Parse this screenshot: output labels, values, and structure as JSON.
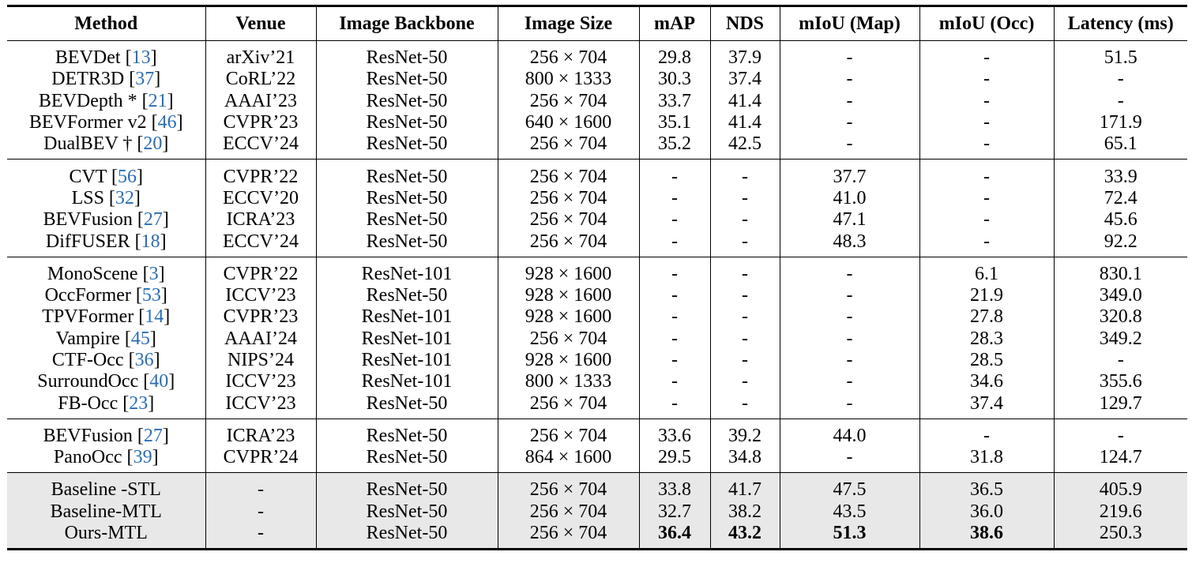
{
  "headers": [
    "Method",
    "Venue",
    "Image Backbone",
    "Image Size",
    "mAP",
    "NDS",
    "mIoU (Map)",
    "mIoU (Occ)",
    "Latency (ms)"
  ],
  "groups": [
    {
      "name": "detection",
      "rows": [
        {
          "method": "BEVDet [",
          "ref": "13",
          "tail": "]",
          "venue": "arXiv’21",
          "backbone": "ResNet-50",
          "size": "256 × 704",
          "map": "29.8",
          "nds": "37.9",
          "miou_map": "-",
          "miou_occ": "-",
          "latency": "51.5"
        },
        {
          "method": "DETR3D [",
          "ref": "37",
          "tail": "]",
          "venue": "CoRL’22",
          "backbone": "ResNet-50",
          "size": "800 × 1333",
          "map": "30.3",
          "nds": "37.4",
          "miou_map": "-",
          "miou_occ": "-",
          "latency": "-"
        },
        {
          "method": "BEVDepth * [",
          "ref": "21",
          "tail": "]",
          "venue": "AAAI’23",
          "backbone": "ResNet-50",
          "size": "256 × 704",
          "map": "33.7",
          "nds": "41.4",
          "miou_map": "-",
          "miou_occ": "-",
          "latency": "-"
        },
        {
          "method": "BEVFormer v2 [",
          "ref": "46",
          "tail": "]",
          "venue": "CVPR’23",
          "backbone": "ResNet-50",
          "size": "640 × 1600",
          "map": "35.1",
          "nds": "41.4",
          "miou_map": "-",
          "miou_occ": "-",
          "latency": "171.9"
        },
        {
          "method": "DualBEV † [",
          "ref": "20",
          "tail": "]",
          "venue": "ECCV’24",
          "backbone": "ResNet-50",
          "size": "256 × 704",
          "map": "35.2",
          "nds": "42.5",
          "miou_map": "-",
          "miou_occ": "-",
          "latency": "65.1"
        }
      ]
    },
    {
      "name": "map-segmentation",
      "rows": [
        {
          "method": "CVT [",
          "ref": "56",
          "tail": "]",
          "venue": "CVPR’22",
          "backbone": "ResNet-50",
          "size": "256 × 704",
          "map": "-",
          "nds": "-",
          "miou_map": "37.7",
          "miou_occ": "-",
          "latency": "33.9"
        },
        {
          "method": "LSS [",
          "ref": "32",
          "tail": "]",
          "venue": "ECCV’20",
          "backbone": "ResNet-50",
          "size": "256 × 704",
          "map": "-",
          "nds": "-",
          "miou_map": "41.0",
          "miou_occ": "-",
          "latency": "72.4"
        },
        {
          "method": "BEVFusion [",
          "ref": "27",
          "tail": "]",
          "venue": "ICRA’23",
          "backbone": "ResNet-50",
          "size": "256 × 704",
          "map": "-",
          "nds": "-",
          "miou_map": "47.1",
          "miou_occ": "-",
          "latency": "45.6"
        },
        {
          "method": "DifFUSER [",
          "ref": "18",
          "tail": "]",
          "venue": "ECCV’24",
          "backbone": "ResNet-50",
          "size": "256 × 704",
          "map": "-",
          "nds": "-",
          "miou_map": "48.3",
          "miou_occ": "-",
          "latency": "92.2"
        }
      ]
    },
    {
      "name": "occupancy",
      "rows": [
        {
          "method": "MonoScene [",
          "ref": "3",
          "tail": "]",
          "venue": "CVPR’22",
          "backbone": "ResNet-101",
          "size": "928 × 1600",
          "map": "-",
          "nds": "-",
          "miou_map": "-",
          "miou_occ": "6.1",
          "latency": "830.1"
        },
        {
          "method": "OccFormer [",
          "ref": "53",
          "tail": "]",
          "venue": "ICCV’23",
          "backbone": "ResNet-50",
          "size": "928 × 1600",
          "map": "-",
          "nds": "-",
          "miou_map": "-",
          "miou_occ": "21.9",
          "latency": "349.0"
        },
        {
          "method": "TPVFormer [",
          "ref": "14",
          "tail": "]",
          "venue": "CVPR’23",
          "backbone": "ResNet-101",
          "size": "928 × 1600",
          "map": "-",
          "nds": "-",
          "miou_map": "-",
          "miou_occ": "27.8",
          "latency": "320.8"
        },
        {
          "method": "Vampire [",
          "ref": "45",
          "tail": "]",
          "venue": "AAAI’24",
          "backbone": "ResNet-101",
          "size": "256 × 704",
          "map": "-",
          "nds": "-",
          "miou_map": "-",
          "miou_occ": "28.3",
          "latency": "349.2"
        },
        {
          "method": "CTF-Occ [",
          "ref": "36",
          "tail": "]",
          "venue": "NIPS’24",
          "backbone": "ResNet-101",
          "size": "928 × 1600",
          "map": "-",
          "nds": "-",
          "miou_map": "-",
          "miou_occ": "28.5",
          "latency": "-"
        },
        {
          "method": "SurroundOcc [",
          "ref": "40",
          "tail": "]",
          "venue": "ICCV’23",
          "backbone": "ResNet-101",
          "size": "800 × 1333",
          "map": "-",
          "nds": "-",
          "miou_map": "-",
          "miou_occ": "34.6",
          "latency": "355.6"
        },
        {
          "method": "FB-Occ [",
          "ref": "23",
          "tail": "]",
          "venue": "ICCV’23",
          "backbone": "ResNet-50",
          "size": "256 × 704",
          "map": "-",
          "nds": "-",
          "miou_map": "-",
          "miou_occ": "37.4",
          "latency": "129.7"
        }
      ]
    },
    {
      "name": "multi-task",
      "rows": [
        {
          "method": "BEVFusion [",
          "ref": "27",
          "tail": "]",
          "venue": "ICRA’23",
          "backbone": "ResNet-50",
          "size": "256 × 704",
          "map": "33.6",
          "nds": "39.2",
          "miou_map": "44.0",
          "miou_occ": "-",
          "latency": "-"
        },
        {
          "method": "PanoOcc [",
          "ref": "39",
          "tail": "]",
          "venue": "CVPR’24",
          "backbone": "ResNet-50",
          "size": "864 × 1600",
          "map": "29.5",
          "nds": "34.8",
          "miou_map": "-",
          "miou_occ": "31.8",
          "latency": "124.7"
        }
      ]
    },
    {
      "name": "ours",
      "rows": [
        {
          "method": "Baseline -STL",
          "ref": "",
          "tail": "",
          "venue": "-",
          "backbone": "ResNet-50",
          "size": "256 × 704",
          "map": "33.8",
          "nds": "41.7",
          "miou_map": "47.5",
          "miou_occ": "36.5",
          "latency": "405.9"
        },
        {
          "method": "Baseline-MTL",
          "ref": "",
          "tail": "",
          "venue": "-",
          "backbone": "ResNet-50",
          "size": "256 × 704",
          "map": "32.7",
          "nds": "38.2",
          "miou_map": "43.5",
          "miou_occ": "36.0",
          "latency": "219.6"
        },
        {
          "method": "Ours-MTL",
          "ref": "",
          "tail": "",
          "venue": "-",
          "backbone": "ResNet-50",
          "size": "256 × 704",
          "map": "36.4",
          "nds": "43.2",
          "miou_map": "51.3",
          "miou_occ": "38.6",
          "latency": "250.3",
          "bold": [
            "map",
            "nds",
            "miou_map",
            "miou_occ"
          ]
        }
      ]
    }
  ]
}
